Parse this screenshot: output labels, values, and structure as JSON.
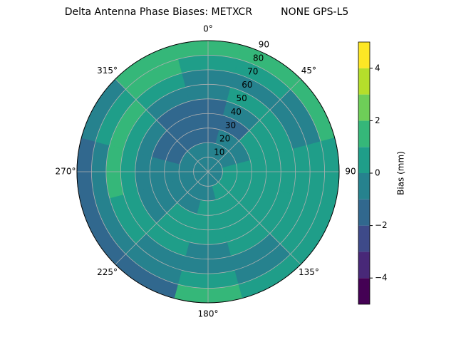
{
  "chart_data": {
    "type": "polar_contour",
    "title": "Delta Antenna Phase Biases: METXCR         NONE GPS-L5",
    "theta": [
      0,
      30,
      60,
      90,
      120,
      150,
      180,
      210,
      240,
      270,
      300,
      330
    ],
    "r": [
      5,
      15,
      25,
      35,
      45,
      55,
      65,
      75,
      85
    ],
    "z": [
      [
        -0.5,
        -0.5,
        -0.5,
        -0.5,
        -0.5,
        -0.5,
        -0.5,
        -0.5,
        -0.5,
        -0.5,
        -0.5,
        -0.5
      ],
      [
        -0.5,
        -0.5,
        -0.5,
        0.5,
        0.5,
        0.5,
        -0.5,
        -0.5,
        -0.5,
        -0.5,
        -0.5,
        -0.5
      ],
      [
        -1.5,
        -0.5,
        -0.5,
        0.5,
        0.5,
        0.5,
        0.5,
        -0.5,
        -0.5,
        -0.5,
        -1.5,
        -1.5
      ],
      [
        -1.5,
        -1.5,
        0.5,
        0.5,
        0.5,
        0.5,
        0.5,
        0.5,
        -0.5,
        -0.5,
        -1.5,
        -1.5
      ],
      [
        -1.5,
        -0.5,
        0.5,
        0.5,
        0.5,
        0.5,
        0.5,
        0.5,
        -0.5,
        -0.5,
        -0.5,
        -1.5
      ],
      [
        -0.5,
        0.5,
        0.5,
        0.5,
        0.5,
        0.5,
        -0.5,
        0.5,
        0.5,
        0.5,
        0.5,
        -0.5
      ],
      [
        -0.5,
        -0.5,
        -0.5,
        0.5,
        0.5,
        -0.5,
        -0.5,
        -0.5,
        0.5,
        1.5,
        1.5,
        0.5
      ],
      [
        0.5,
        0.5,
        -0.5,
        0.5,
        0.5,
        -0.5,
        0.5,
        -0.5,
        -0.5,
        -0.5,
        0.5,
        1.5
      ],
      [
        1.5,
        1.5,
        1.5,
        0.5,
        0.5,
        0.5,
        1.5,
        -1.5,
        -1.5,
        -1.5,
        -0.5,
        1.5
      ]
    ],
    "rlim": [
      0,
      90
    ],
    "rticks": [
      10,
      20,
      30,
      40,
      50,
      60,
      70,
      80,
      90
    ],
    "thetaticks": [
      {
        "value": 0,
        "label": "0°"
      },
      {
        "value": 45,
        "label": "45°"
      },
      {
        "value": 90,
        "label": "90"
      },
      {
        "value": 135,
        "label": "135°"
      },
      {
        "value": 180,
        "label": "180°"
      },
      {
        "value": 225,
        "label": "225°"
      },
      {
        "value": 270,
        "label": "270°"
      },
      {
        "value": 315,
        "label": "315°"
      }
    ],
    "levels": [
      -5,
      -4,
      -3,
      -2,
      -1,
      0,
      1,
      2,
      3,
      4,
      5
    ],
    "colors": [
      "#440154",
      "#482878",
      "#3e4a89",
      "#31688e",
      "#26828e",
      "#1f9e89",
      "#35b779",
      "#6ece58",
      "#b5de2b",
      "#fde725"
    ],
    "colorbar_label": "Bias (mm)",
    "colorbar_ticks": [
      {
        "value": -4,
        "label": "−4"
      },
      {
        "value": -2,
        "label": "−2"
      },
      0,
      2,
      4
    ],
    "grid": true
  }
}
